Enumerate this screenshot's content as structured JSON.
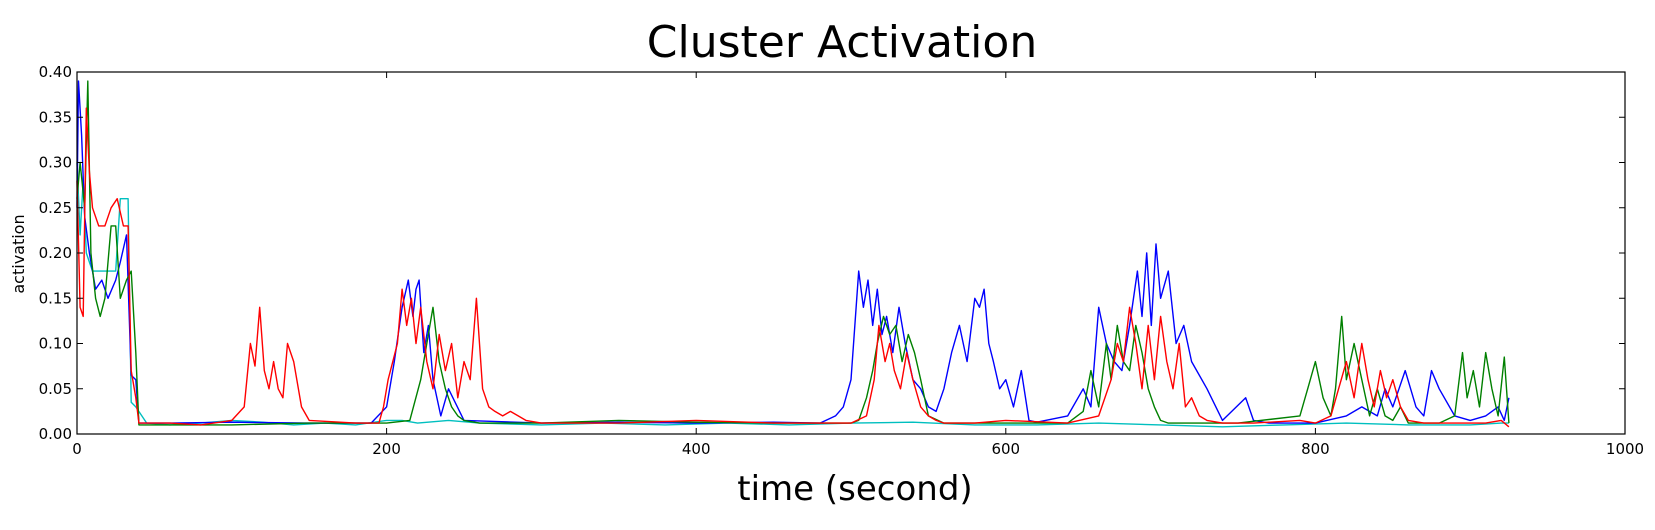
{
  "chart_data": {
    "type": "line",
    "title": "Cluster Activation",
    "xlabel": "time (second)",
    "ylabel": "activation",
    "xlim": [
      0,
      1000
    ],
    "ylim": [
      0,
      0.4
    ],
    "grid": false,
    "x_ticks": [
      0,
      200,
      400,
      600,
      800,
      1000
    ],
    "x_tick_labels": [
      "0",
      "200",
      "400",
      "600",
      "800",
      "1000"
    ],
    "y_ticks": [
      0.0,
      0.05,
      0.1,
      0.15,
      0.2,
      0.25,
      0.3,
      0.35,
      0.4
    ],
    "y_tick_labels": [
      "0.00",
      "0.05",
      "0.10",
      "0.15",
      "0.20",
      "0.25",
      "0.30",
      "0.35",
      "0.40"
    ],
    "series": [
      {
        "color": "#00bfbf",
        "x": [
          0,
          2,
          4,
          6,
          8,
          10,
          14,
          20,
          25,
          28,
          30,
          33,
          35,
          38,
          45,
          60,
          80,
          100,
          120,
          140,
          160,
          180,
          200,
          210,
          220,
          240,
          260,
          300,
          340,
          380,
          420,
          460,
          500,
          540,
          580,
          620,
          660,
          700,
          740,
          780,
          820,
          860,
          900,
          920,
          925
        ],
        "y": [
          0.3,
          0.22,
          0.28,
          0.2,
          0.19,
          0.18,
          0.18,
          0.18,
          0.18,
          0.26,
          0.26,
          0.26,
          0.035,
          0.03,
          0.012,
          0.01,
          0.012,
          0.015,
          0.013,
          0.01,
          0.012,
          0.01,
          0.015,
          0.015,
          0.012,
          0.015,
          0.012,
          0.01,
          0.012,
          0.01,
          0.012,
          0.01,
          0.012,
          0.013,
          0.01,
          0.01,
          0.012,
          0.01,
          0.008,
          0.01,
          0.012,
          0.01,
          0.01,
          0.012,
          0.012
        ]
      },
      {
        "color": "#0000ff",
        "x": [
          0,
          1,
          3,
          5,
          8,
          12,
          16,
          20,
          25,
          28,
          32,
          35,
          38,
          40,
          60,
          100,
          150,
          190,
          200,
          205,
          210,
          214,
          217,
          219,
          221,
          224,
          227,
          230,
          235,
          240,
          250,
          300,
          350,
          400,
          450,
          480,
          490,
          495,
          500,
          505,
          508,
          511,
          514,
          517,
          520,
          523,
          527,
          531,
          535,
          540,
          545,
          550,
          555,
          560,
          565,
          570,
          575,
          580,
          583,
          586,
          589,
          592,
          596,
          600,
          605,
          610,
          615,
          620,
          640,
          650,
          655,
          660,
          665,
          670,
          675,
          680,
          685,
          688,
          691,
          694,
          697,
          700,
          705,
          710,
          715,
          720,
          730,
          740,
          755,
          760,
          770,
          800,
          820,
          830,
          840,
          845,
          850,
          858,
          865,
          870,
          875,
          880,
          890,
          900,
          910,
          918,
          922,
          925
        ],
        "y": [
          0.25,
          0.39,
          0.33,
          0.24,
          0.2,
          0.16,
          0.17,
          0.15,
          0.17,
          0.19,
          0.22,
          0.065,
          0.06,
          0.012,
          0.012,
          0.013,
          0.012,
          0.012,
          0.03,
          0.08,
          0.14,
          0.17,
          0.13,
          0.16,
          0.17,
          0.09,
          0.12,
          0.06,
          0.02,
          0.05,
          0.015,
          0.012,
          0.013,
          0.012,
          0.013,
          0.012,
          0.02,
          0.03,
          0.06,
          0.18,
          0.14,
          0.17,
          0.12,
          0.16,
          0.11,
          0.13,
          0.09,
          0.14,
          0.1,
          0.06,
          0.05,
          0.03,
          0.025,
          0.05,
          0.09,
          0.12,
          0.08,
          0.15,
          0.14,
          0.16,
          0.1,
          0.08,
          0.05,
          0.06,
          0.03,
          0.07,
          0.015,
          0.013,
          0.02,
          0.05,
          0.03,
          0.14,
          0.1,
          0.08,
          0.07,
          0.12,
          0.18,
          0.13,
          0.2,
          0.12,
          0.21,
          0.15,
          0.18,
          0.1,
          0.12,
          0.08,
          0.05,
          0.015,
          0.04,
          0.015,
          0.012,
          0.012,
          0.02,
          0.03,
          0.02,
          0.05,
          0.03,
          0.07,
          0.03,
          0.02,
          0.07,
          0.05,
          0.02,
          0.015,
          0.02,
          0.03,
          0.015,
          0.04
        ]
      },
      {
        "color": "#008000",
        "x": [
          0,
          2,
          5,
          7,
          9,
          12,
          15,
          18,
          22,
          25,
          28,
          32,
          35,
          38,
          40,
          60,
          100,
          150,
          200,
          215,
          222,
          226,
          230,
          234,
          238,
          242,
          246,
          250,
          260,
          300,
          350,
          400,
          450,
          500,
          505,
          510,
          514,
          517,
          521,
          525,
          529,
          533,
          537,
          541,
          545,
          550,
          560,
          600,
          640,
          650,
          655,
          660,
          665,
          668,
          672,
          676,
          680,
          684,
          688,
          692,
          696,
          700,
          705,
          710,
          720,
          750,
          790,
          795,
          800,
          805,
          810,
          813,
          817,
          820,
          825,
          830,
          835,
          840,
          845,
          850,
          855,
          860,
          870,
          880,
          890,
          895,
          898,
          902,
          906,
          910,
          914,
          918,
          922,
          925
        ],
        "y": [
          0.26,
          0.3,
          0.25,
          0.39,
          0.2,
          0.15,
          0.13,
          0.15,
          0.23,
          0.23,
          0.15,
          0.17,
          0.18,
          0.09,
          0.01,
          0.01,
          0.01,
          0.012,
          0.012,
          0.015,
          0.06,
          0.1,
          0.14,
          0.08,
          0.05,
          0.03,
          0.02,
          0.015,
          0.012,
          0.012,
          0.015,
          0.013,
          0.012,
          0.012,
          0.015,
          0.04,
          0.07,
          0.1,
          0.13,
          0.11,
          0.12,
          0.08,
          0.11,
          0.09,
          0.06,
          0.02,
          0.012,
          0.012,
          0.012,
          0.025,
          0.07,
          0.03,
          0.1,
          0.06,
          0.12,
          0.08,
          0.07,
          0.12,
          0.09,
          0.05,
          0.03,
          0.015,
          0.012,
          0.012,
          0.012,
          0.012,
          0.02,
          0.05,
          0.08,
          0.04,
          0.02,
          0.05,
          0.13,
          0.06,
          0.1,
          0.06,
          0.02,
          0.05,
          0.02,
          0.015,
          0.03,
          0.012,
          0.012,
          0.012,
          0.02,
          0.09,
          0.04,
          0.07,
          0.03,
          0.09,
          0.05,
          0.02,
          0.085,
          0.012
        ]
      },
      {
        "color": "#ff0000",
        "x": [
          0,
          2,
          4,
          6,
          8,
          10,
          14,
          18,
          22,
          26,
          30,
          33,
          35,
          38,
          40,
          60,
          80,
          100,
          108,
          112,
          115,
          118,
          121,
          124,
          127,
          130,
          133,
          136,
          140,
          145,
          150,
          180,
          195,
          198,
          201,
          204,
          207,
          210,
          213,
          216,
          219,
          222,
          226,
          230,
          234,
          238,
          242,
          246,
          250,
          254,
          258,
          262,
          266,
          270,
          275,
          280,
          285,
          290,
          300,
          350,
          400,
          450,
          500,
          510,
          515,
          518,
          522,
          525,
          528,
          532,
          536,
          540,
          545,
          550,
          555,
          560,
          580,
          600,
          640,
          660,
          668,
          672,
          676,
          680,
          684,
          688,
          692,
          696,
          700,
          704,
          708,
          712,
          716,
          720,
          725,
          730,
          740,
          760,
          790,
          800,
          810,
          815,
          820,
          825,
          830,
          834,
          838,
          842,
          846,
          850,
          855,
          860,
          870,
          890,
          910,
          920,
          925
        ],
        "y": [
          0.28,
          0.14,
          0.13,
          0.36,
          0.29,
          0.25,
          0.23,
          0.23,
          0.25,
          0.26,
          0.23,
          0.23,
          0.07,
          0.04,
          0.012,
          0.012,
          0.01,
          0.015,
          0.03,
          0.1,
          0.075,
          0.14,
          0.07,
          0.05,
          0.08,
          0.05,
          0.04,
          0.1,
          0.08,
          0.03,
          0.015,
          0.012,
          0.012,
          0.03,
          0.06,
          0.08,
          0.1,
          0.16,
          0.12,
          0.15,
          0.1,
          0.14,
          0.08,
          0.05,
          0.11,
          0.07,
          0.1,
          0.04,
          0.08,
          0.06,
          0.15,
          0.05,
          0.03,
          0.025,
          0.02,
          0.025,
          0.02,
          0.015,
          0.012,
          0.012,
          0.015,
          0.012,
          0.012,
          0.02,
          0.06,
          0.12,
          0.08,
          0.1,
          0.07,
          0.05,
          0.09,
          0.06,
          0.03,
          0.02,
          0.015,
          0.012,
          0.012,
          0.015,
          0.012,
          0.02,
          0.06,
          0.1,
          0.08,
          0.14,
          0.1,
          0.05,
          0.12,
          0.06,
          0.13,
          0.08,
          0.05,
          0.1,
          0.03,
          0.04,
          0.02,
          0.015,
          0.012,
          0.012,
          0.015,
          0.012,
          0.02,
          0.05,
          0.08,
          0.04,
          0.1,
          0.06,
          0.03,
          0.07,
          0.04,
          0.06,
          0.03,
          0.015,
          0.012,
          0.012,
          0.012,
          0.015,
          0.008
        ]
      }
    ]
  }
}
